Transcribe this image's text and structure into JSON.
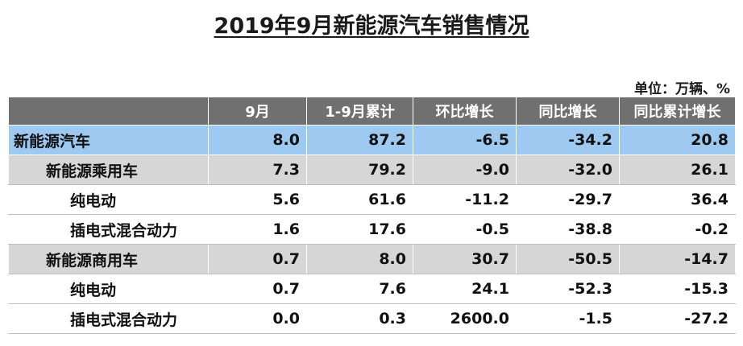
{
  "title": "2019年9月新能源汽车销售情况",
  "unit_note": "单位：万辆、%",
  "table": {
    "headers": [
      "",
      "9月",
      "1-9月累计",
      "环比增长",
      "同比增长",
      "同比累计增长"
    ],
    "rows": [
      {
        "name": "新能源汽车",
        "values": [
          "8.0",
          "87.2",
          "-6.5",
          "-34.2",
          "20.8"
        ]
      },
      {
        "name": "新能源乘用车",
        "values": [
          "7.3",
          "79.2",
          "-9.0",
          "-32.0",
          "26.1"
        ]
      },
      {
        "name": "纯电动",
        "values": [
          "5.6",
          "61.6",
          "-11.2",
          "-29.7",
          "36.4"
        ]
      },
      {
        "name": "插电式混合动力",
        "values": [
          "1.6",
          "17.6",
          "-0.5",
          "-38.8",
          "-0.2"
        ]
      },
      {
        "name": "新能源商用车",
        "values": [
          "0.7",
          "8.0",
          "30.7",
          "-50.5",
          "-14.7"
        ]
      },
      {
        "name": "纯电动",
        "values": [
          "0.7",
          "7.6",
          "24.1",
          "-52.3",
          "-15.3"
        ]
      },
      {
        "name": "插电式混合动力",
        "values": [
          "0.0",
          "0.3",
          "2600.0",
          "-1.5",
          "-27.2"
        ]
      }
    ]
  },
  "colors": {
    "header_bg": "#707070",
    "total_row_bg": "#9dc9f1",
    "subtotal_row_bg": "#d6d6d6",
    "item_row_bg": "#ffffff"
  }
}
